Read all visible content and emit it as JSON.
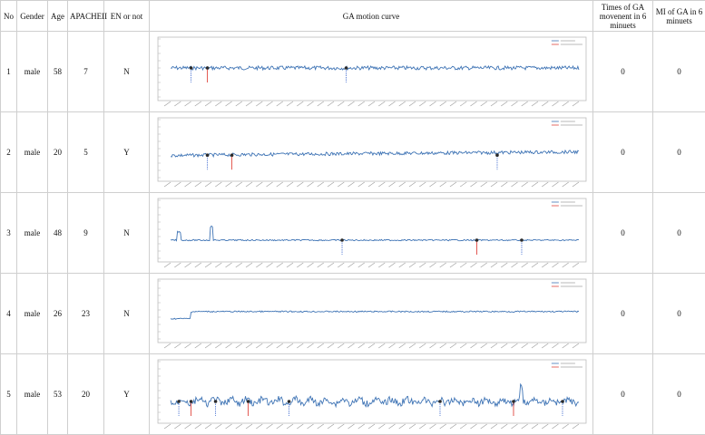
{
  "table": {
    "headers": {
      "no": "No",
      "gender": "Gender",
      "age": "Age",
      "apache": "APACHEII",
      "en": "EN or not",
      "curve": "GA motion curve",
      "times": "Times of GA movenent in 6 minuets",
      "mi": "MI of GA in 6 minuets"
    },
    "rows": [
      {
        "no": "1",
        "gender": "male",
        "age": "58",
        "apache": "7",
        "en": "N",
        "times": "0",
        "mi": "0"
      },
      {
        "no": "2",
        "gender": "male",
        "age": "20",
        "apache": "5",
        "en": "Y",
        "times": "0",
        "mi": "0"
      },
      {
        "no": "3",
        "gender": "male",
        "age": "48",
        "apache": "9",
        "en": "N",
        "times": "0",
        "mi": "0"
      },
      {
        "no": "4",
        "gender": "male",
        "age": "26",
        "apache": "23",
        "en": "N",
        "times": "0",
        "mi": "0"
      },
      {
        "no": "5",
        "gender": "male",
        "age": "53",
        "apache": "20",
        "en": "Y",
        "times": "0",
        "mi": "0"
      }
    ]
  },
  "colors": {
    "curve": "#3f74b5",
    "marker_blue": "#5a7fd6",
    "marker_red": "#e0473f",
    "frame": "#bdbdbd"
  },
  "curves": [
    {
      "baseline": 0.5,
      "noise": 0.035,
      "trend": 0.0,
      "markers": [
        {
          "t": 0.05,
          "c": "blue"
        },
        {
          "t": 0.09,
          "c": "red"
        },
        {
          "t": 0.43,
          "c": "blue"
        }
      ]
    },
    {
      "baseline": 0.62,
      "noise": 0.03,
      "trend": 0.1,
      "markers": [
        {
          "t": 0.09,
          "c": "blue"
        },
        {
          "t": 0.15,
          "c": "red"
        },
        {
          "t": 0.8,
          "c": "blue"
        }
      ]
    },
    {
      "baseline": 0.7,
      "noise": 0.012,
      "trend": 0.0,
      "spikes": [
        {
          "t": 0.02,
          "h": 0.15
        },
        {
          "t": 0.1,
          "h": 0.25
        }
      ],
      "markers": [
        {
          "t": 0.42,
          "c": "blue"
        },
        {
          "t": 0.75,
          "c": "red"
        },
        {
          "t": 0.86,
          "c": "blue"
        }
      ]
    },
    {
      "baseline": 0.53,
      "noise": 0.012,
      "trend": 0.0,
      "step": {
        "t": 0.05,
        "from": 0.66
      },
      "markers": []
    },
    {
      "baseline": 0.7,
      "noise": 0.06,
      "trend": 0.0,
      "oscillate": true,
      "spikes": [
        {
          "t": 0.86,
          "h": 0.25
        }
      ],
      "markers": [
        {
          "t": 0.02,
          "c": "blue"
        },
        {
          "t": 0.05,
          "c": "red"
        },
        {
          "t": 0.11,
          "c": "blue"
        },
        {
          "t": 0.19,
          "c": "red"
        },
        {
          "t": 0.29,
          "c": "blue"
        },
        {
          "t": 0.66,
          "c": "blue"
        },
        {
          "t": 0.84,
          "c": "red"
        },
        {
          "t": 0.96,
          "c": "blue"
        }
      ]
    }
  ]
}
